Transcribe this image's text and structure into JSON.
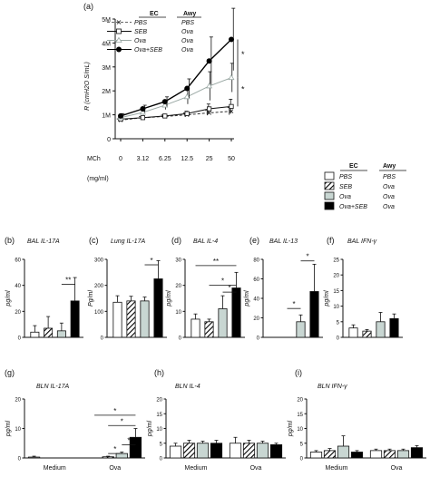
{
  "legend_a": {
    "ec_header": "EC",
    "awy_header": "Awy",
    "rows": [
      {
        "ec": "PBS",
        "awy": "PBS"
      },
      {
        "ec": "SEB",
        "awy": "Ova"
      },
      {
        "ec": "Ova",
        "awy": "Ova"
      },
      {
        "ec": "Ova+SEB",
        "awy": "Ova"
      }
    ]
  },
  "legend_b": {
    "ec_header": "EC",
    "awy_header": "Awy",
    "rows": [
      {
        "ec": "PBS",
        "awy": "PBS"
      },
      {
        "ec": "SEB",
        "awy": "Ova"
      },
      {
        "ec": "Ova",
        "awy": "Ova"
      },
      {
        "ec": "Ova+SEB",
        "awy": "Ova"
      }
    ]
  },
  "colors": {
    "pbs": "#ffffff",
    "seb": "hatched",
    "ova": "#c8d6d2",
    "ovaseb": "#000000",
    "ova_line": "#9aa8a4"
  },
  "chart_data": [
    {
      "panel": "(a)",
      "type": "line",
      "ylabel": "R (cmH2O S/mL)",
      "xlabel_left": "MCh",
      "xunit": "(mg/ml)",
      "categories": [
        "0",
        "3.12",
        "6.25",
        "12.5",
        "25",
        "50"
      ],
      "ylim": [
        0,
        5
      ],
      "yticks": [
        "0",
        "1M",
        "2M",
        "3M",
        "4M",
        "5M"
      ],
      "series": [
        {
          "name": "PBS",
          "values": [
            0.78,
            0.88,
            0.93,
            1.0,
            1.08,
            1.15
          ],
          "err": [
            0.05,
            0.05,
            0.06,
            0.08,
            0.1,
            0.15
          ]
        },
        {
          "name": "SEB",
          "values": [
            0.82,
            0.88,
            0.95,
            1.05,
            1.25,
            1.35
          ],
          "err": [
            0.06,
            0.06,
            0.08,
            0.1,
            0.2,
            0.3
          ]
        },
        {
          "name": "Ova",
          "values": [
            0.88,
            1.1,
            1.4,
            1.75,
            2.2,
            2.55
          ],
          "err": [
            0.08,
            0.1,
            0.18,
            0.3,
            0.6,
            0.6
          ]
        },
        {
          "name": "Ova+SEB",
          "values": [
            0.95,
            1.25,
            1.55,
            2.1,
            3.25,
            4.15
          ],
          "err": [
            0.1,
            0.15,
            0.2,
            0.4,
            1.0,
            1.3
          ]
        }
      ],
      "annotations": [
        "*",
        "*"
      ]
    },
    {
      "panel": "(b)",
      "type": "bar",
      "title": "BAL IL-17A",
      "ylabel": "pg/ml",
      "ylim": [
        0,
        60
      ],
      "yticks": [
        "0",
        "20",
        "40",
        "60"
      ],
      "values": [
        4,
        7,
        5,
        28
      ],
      "err": [
        5,
        9,
        6,
        18
      ],
      "annotations": [
        "**"
      ]
    },
    {
      "panel": "(c)",
      "type": "bar",
      "title": "Lung IL-17A",
      "ylabel": "Pg/ml",
      "ylim": [
        0,
        300
      ],
      "yticks": [
        "0",
        "100",
        "200",
        "300"
      ],
      "values": [
        135,
        140,
        140,
        225
      ],
      "err": [
        25,
        18,
        15,
        70
      ],
      "annotations": [
        "*"
      ]
    },
    {
      "panel": "(d)",
      "type": "bar",
      "title": "BAL IL-4",
      "ylabel": "pg/ml",
      "ylim": [
        0,
        30
      ],
      "yticks": [
        "0",
        "10",
        "20",
        "30"
      ],
      "values": [
        7,
        6,
        11,
        19
      ],
      "err": [
        2,
        1,
        5,
        6
      ],
      "annotations": [
        "*",
        "*",
        "**"
      ]
    },
    {
      "panel": "(e)",
      "type": "bar",
      "title": "BAL IL-13",
      "ylabel": "pg/ml",
      "ylim": [
        0,
        80
      ],
      "yticks": [
        "0",
        "20",
        "40",
        "60",
        "80"
      ],
      "values": [
        0,
        0,
        16,
        47
      ],
      "err": [
        0,
        0,
        7,
        28
      ],
      "annotations": [
        "*",
        "*"
      ]
    },
    {
      "panel": "(f)",
      "type": "bar",
      "title": "BAL IFN-γ",
      "ylabel": "pg/ml",
      "ylim": [
        0,
        25
      ],
      "yticks": [
        "0",
        "5",
        "10",
        "15",
        "20",
        "25"
      ],
      "values": [
        3,
        2,
        5,
        6
      ],
      "err": [
        1,
        0.5,
        3,
        1.5
      ],
      "annotations": []
    },
    {
      "panel": "(g)",
      "type": "bar",
      "title": "BLN IL-17A",
      "ylabel": "pg/ml",
      "ylim": [
        0,
        20
      ],
      "yticks": [
        "0",
        "10",
        "20"
      ],
      "groups": [
        "Medium",
        "Ova"
      ],
      "values": [
        [
          0.3,
          0,
          0,
          0
        ],
        [
          0,
          0.4,
          1.5,
          7
        ]
      ],
      "err": [
        [
          0.3,
          0,
          0,
          0
        ],
        [
          0,
          0.2,
          0.5,
          3
        ]
      ],
      "annotations": [
        "*",
        "*",
        "*",
        "*"
      ]
    },
    {
      "panel": "(h)",
      "type": "bar",
      "title": "BLN IL-4",
      "ylabel": "pg/ml",
      "ylim": [
        0,
        20
      ],
      "yticks": [
        "0",
        "5",
        "10",
        "15",
        "20"
      ],
      "groups": [
        "Medium",
        "Ova"
      ],
      "values": [
        [
          4,
          5,
          5,
          5
        ],
        [
          5,
          5,
          5,
          4.5
        ]
      ],
      "err": [
        [
          1,
          1,
          0.7,
          1
        ],
        [
          2,
          1,
          0.7,
          0.5
        ]
      ],
      "annotations": []
    },
    {
      "panel": "(i)",
      "type": "bar",
      "title": "BLN IFN-γ",
      "ylabel": "pg/ml",
      "ylim": [
        0,
        20
      ],
      "yticks": [
        "0",
        "5",
        "10",
        "15",
        "20"
      ],
      "groups": [
        "Medium",
        "Ova"
      ],
      "values": [
        [
          2,
          2.5,
          4,
          2
        ],
        [
          2.5,
          2.5,
          2.5,
          3.5
        ]
      ],
      "err": [
        [
          0.5,
          0.7,
          3.5,
          0.5
        ],
        [
          0.5,
          0.5,
          0.5,
          0.7
        ]
      ],
      "annotations": []
    }
  ]
}
